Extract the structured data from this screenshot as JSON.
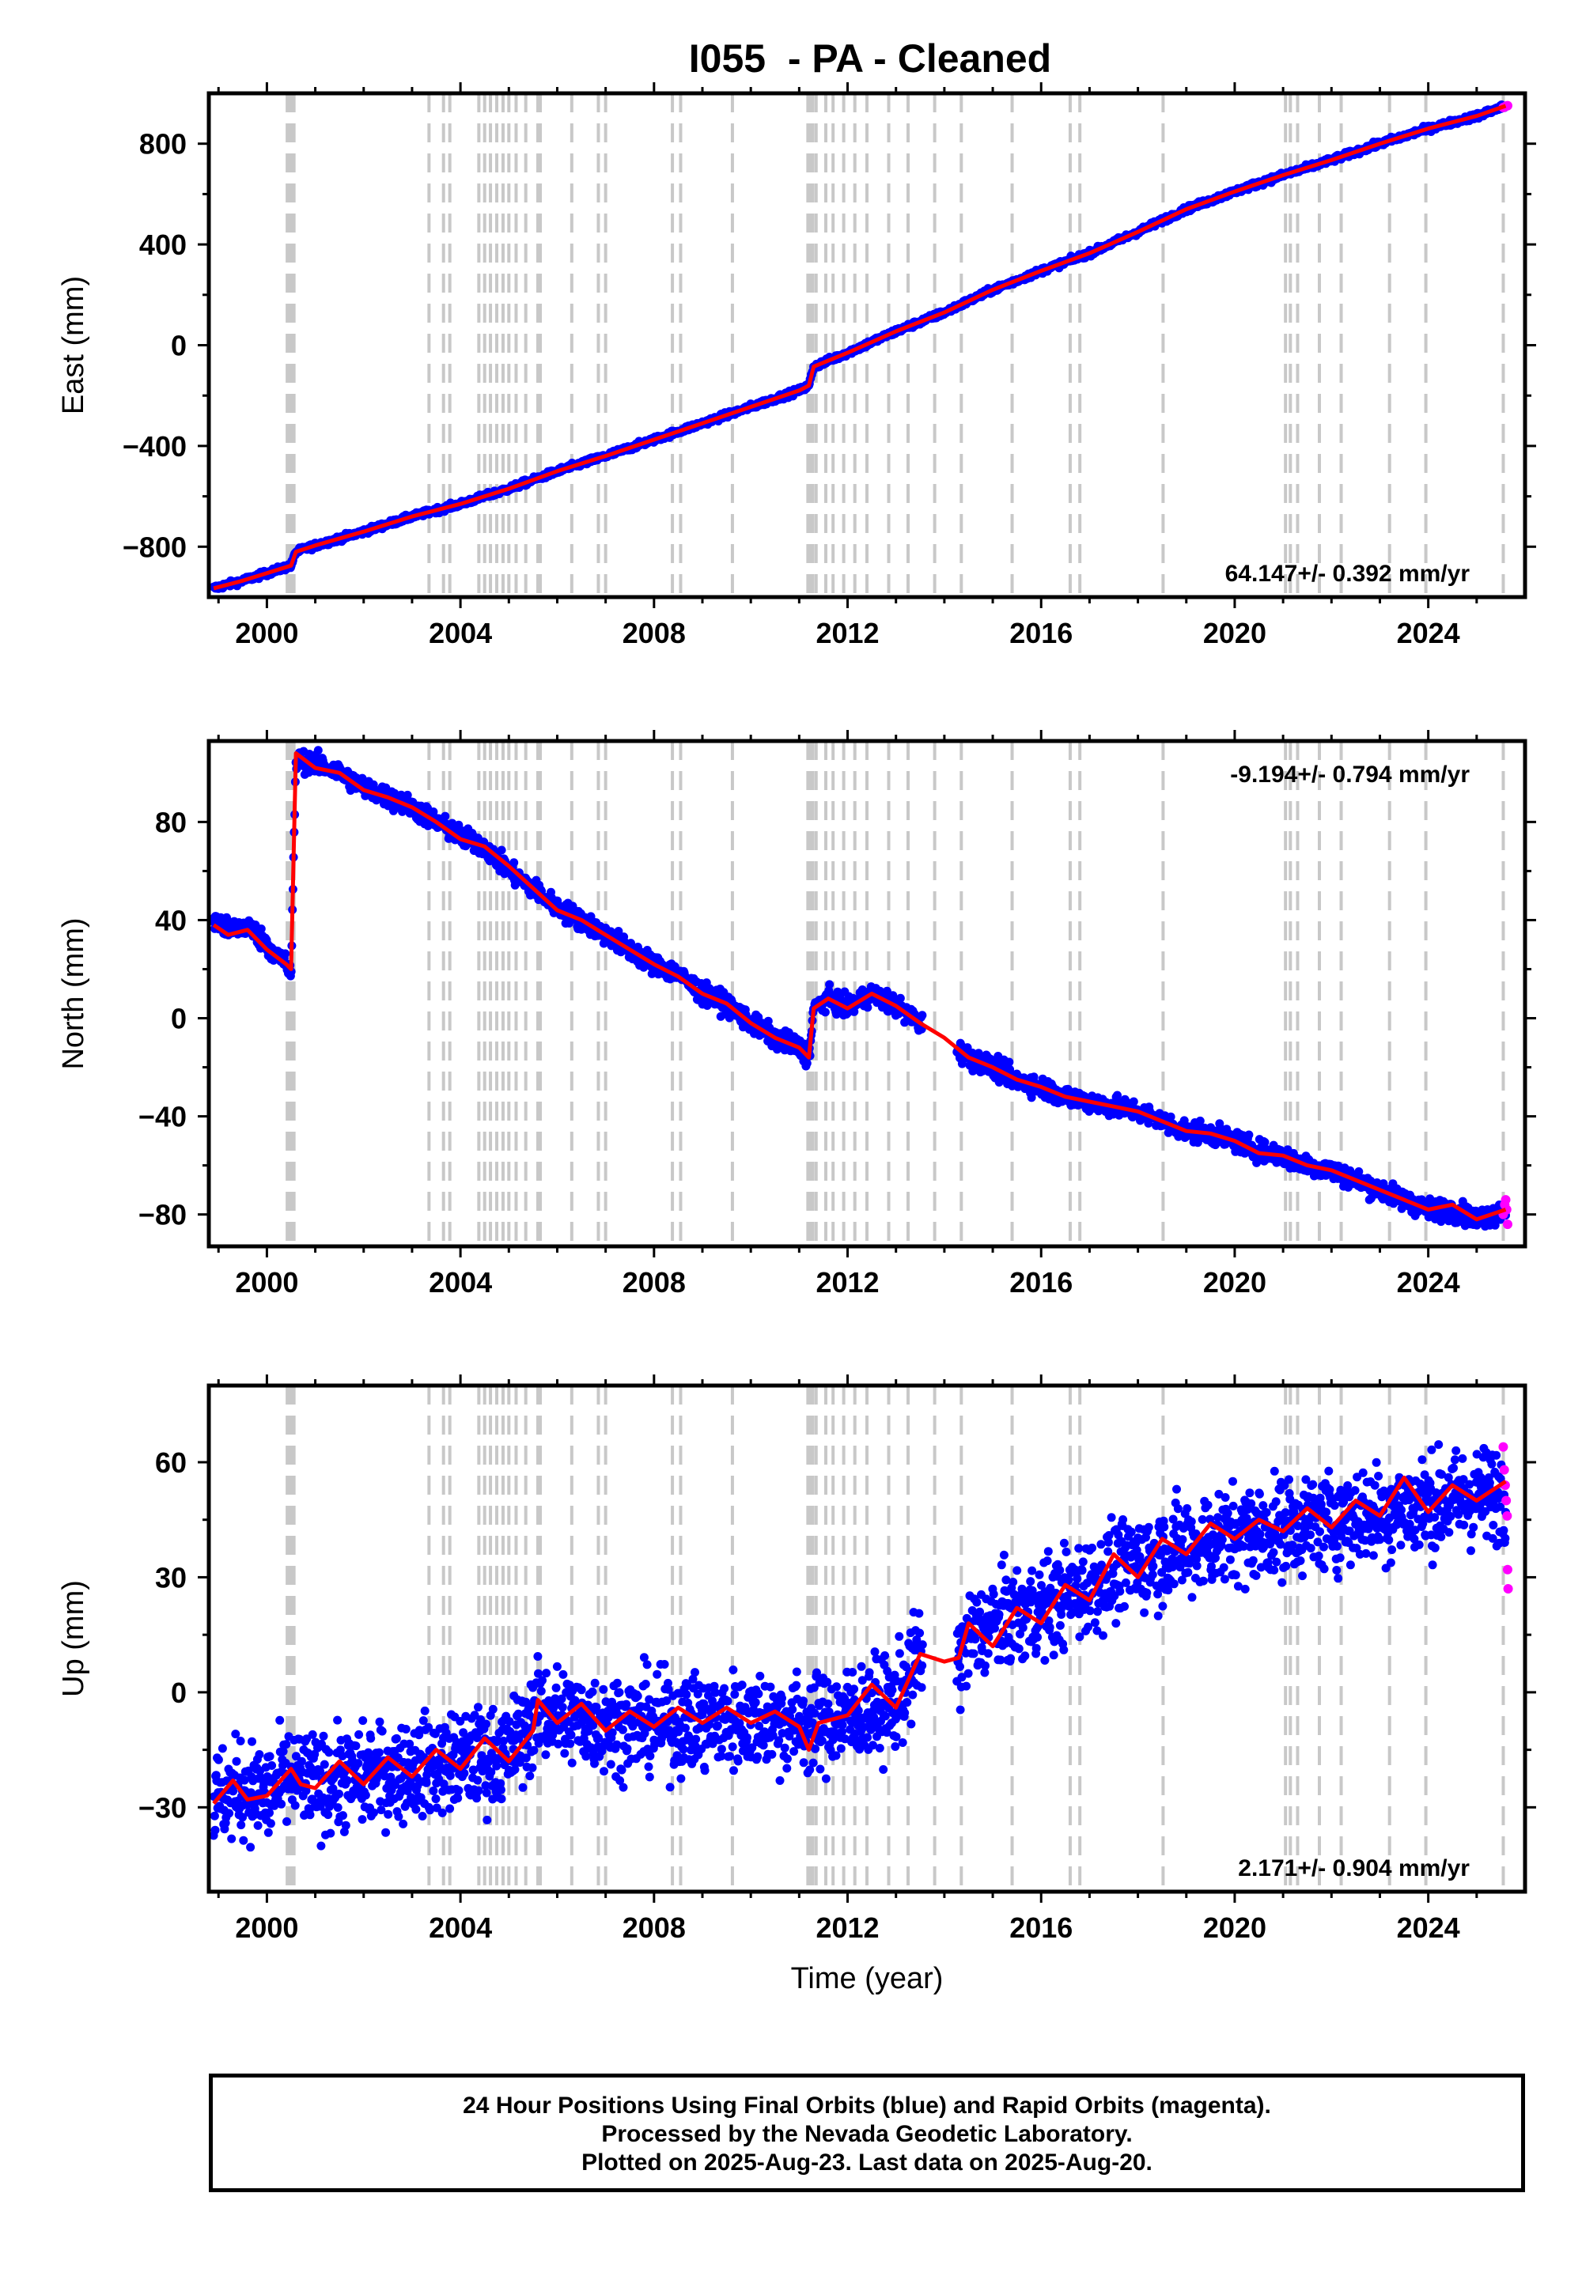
{
  "title": "I055  - PA - Cleaned",
  "colors": {
    "final_orbits": "#0000ff",
    "rapid_orbits": "#ff00ff",
    "model_fit": "#ff0000",
    "event_lines": "#c8c8c8",
    "frame": "#000000"
  },
  "footer": {
    "line1": "24 Hour Positions Using Final Orbits (blue) and Rapid Orbits (magenta).",
    "line2": "Processed by the Nevada Geodetic Laboratory.",
    "line3": "Plotted on 2025-Aug-23. Last data on 2025-Aug-20."
  },
  "chart_data": [
    {
      "type": "scatter",
      "panel": "east",
      "ylabel": "East (mm)",
      "xlabel": "",
      "xlim": [
        1998.8,
        2026.0
      ],
      "ylim": [
        -1000,
        1000
      ],
      "xticks": [
        "2000",
        "2004",
        "2008",
        "2012",
        "2016",
        "2020",
        "2024"
      ],
      "yticks": [
        "−800",
        "−400",
        "0",
        "400",
        "800"
      ],
      "ytick_values": [
        -800,
        -400,
        0,
        400,
        800
      ],
      "rate_label": "64.147+/- 0.392 mm/yr",
      "rate_label_position": "bottom-right",
      "event_lines": [
        2000.42,
        2000.45,
        2000.48,
        2000.5,
        2000.53,
        2000.56,
        2003.35,
        2003.65,
        2003.78,
        2004.38,
        2004.5,
        2004.62,
        2004.75,
        2004.88,
        2005.0,
        2005.15,
        2005.35,
        2005.6,
        2005.65,
        2006.3,
        2006.85,
        2007.0,
        2008.38,
        2008.55,
        2009.62,
        2011.18,
        2011.22,
        2011.28,
        2011.35,
        2011.55,
        2011.7,
        2011.92,
        2012.15,
        2012.4,
        2012.85,
        2013.25,
        2013.8,
        2014.35,
        2015.4,
        2016.6,
        2016.8,
        2018.52,
        2021.05,
        2021.15,
        2021.3,
        2021.75,
        2022.2,
        2023.2,
        2023.95,
        2025.55
      ],
      "series": [
        {
          "name": "Final Orbits",
          "kind": "points",
          "x": [
            1998.9,
            1999.5,
            2000.0,
            2000.5,
            2000.6,
            2001.0,
            2002.0,
            2003.0,
            2004.0,
            2005.0,
            2006.0,
            2007.0,
            2008.0,
            2009.0,
            2010.0,
            2011.0,
            2011.2,
            2011.3,
            2012.0,
            2013.0,
            2014.0,
            2015.0,
            2016.0,
            2017.0,
            2018.0,
            2019.0,
            2020.0,
            2021.0,
            2022.0,
            2023.0,
            2024.0,
            2025.0,
            2025.6
          ],
          "y": [
            -965,
            -935,
            -905,
            -875,
            -820,
            -795,
            -740,
            -680,
            -630,
            -570,
            -500,
            -440,
            -375,
            -310,
            -245,
            -180,
            -160,
            -85,
            -30,
            55,
            130,
            220,
            295,
            365,
            450,
            540,
            610,
            675,
            735,
            800,
            860,
            910,
            950
          ],
          "spread": 8
        },
        {
          "name": "Rapid Orbits",
          "kind": "points",
          "x": [
            2025.55,
            2025.58,
            2025.6,
            2025.62,
            2025.64
          ],
          "y": [
            944,
            946,
            948,
            950,
            951
          ],
          "spread": 4
        },
        {
          "name": "Model",
          "kind": "line",
          "x": [
            1998.9,
            1999.5,
            2000.0,
            2000.5,
            2000.6,
            2001.0,
            2002.0,
            2003.0,
            2004.0,
            2005.0,
            2006.0,
            2007.0,
            2008.0,
            2009.0,
            2010.0,
            2011.0,
            2011.2,
            2011.3,
            2012.0,
            2013.0,
            2014.0,
            2015.0,
            2016.0,
            2017.0,
            2018.0,
            2019.0,
            2020.0,
            2021.0,
            2022.0,
            2023.0,
            2024.0,
            2025.0,
            2025.6
          ],
          "y": [
            -965,
            -935,
            -905,
            -875,
            -820,
            -795,
            -740,
            -680,
            -630,
            -570,
            -500,
            -440,
            -375,
            -310,
            -245,
            -180,
            -160,
            -85,
            -30,
            55,
            130,
            220,
            295,
            365,
            450,
            540,
            610,
            675,
            735,
            800,
            860,
            910,
            950
          ]
        }
      ]
    },
    {
      "type": "scatter",
      "panel": "north",
      "ylabel": "North (mm)",
      "xlabel": "",
      "xlim": [
        1998.8,
        2026.0
      ],
      "ylim": [
        -93,
        113
      ],
      "xticks": [
        "2000",
        "2004",
        "2008",
        "2012",
        "2016",
        "2020",
        "2024"
      ],
      "yticks": [
        "−80",
        "−40",
        "0",
        "40",
        "80"
      ],
      "ytick_values": [
        -80,
        -40,
        0,
        40,
        80
      ],
      "rate_label": "-9.194+/- 0.794 mm/yr",
      "rate_label_position": "top-right",
      "event_lines": [
        2000.42,
        2000.45,
        2000.48,
        2000.5,
        2000.53,
        2000.56,
        2003.35,
        2003.65,
        2003.78,
        2004.38,
        2004.5,
        2004.62,
        2004.75,
        2004.88,
        2005.0,
        2005.15,
        2005.35,
        2005.6,
        2005.65,
        2006.3,
        2006.85,
        2007.0,
        2008.38,
        2008.55,
        2009.62,
        2011.18,
        2011.22,
        2011.28,
        2011.35,
        2011.55,
        2011.7,
        2011.92,
        2012.15,
        2012.4,
        2012.85,
        2013.25,
        2013.8,
        2014.35,
        2015.4,
        2016.6,
        2016.8,
        2018.52,
        2021.05,
        2021.15,
        2021.3,
        2021.75,
        2022.2,
        2023.2,
        2023.95,
        2025.55
      ],
      "series": [
        {
          "name": "Final Orbits",
          "kind": "points",
          "x": [
            1998.9,
            1999.2,
            1999.6,
            2000.0,
            2000.4,
            2000.5,
            2000.6,
            2001.0,
            2001.5,
            2002.0,
            2002.5,
            2003.0,
            2003.5,
            2004.0,
            2004.5,
            2005.0,
            2005.5,
            2006.0,
            2006.5,
            2007.0,
            2007.5,
            2008.0,
            2008.5,
            2009.0,
            2009.5,
            2010.0,
            2010.5,
            2011.0,
            2011.2,
            2011.3,
            2011.6,
            2012.0,
            2012.5,
            2013.0,
            2013.5,
            2014.0,
            2014.5,
            2015.0,
            2015.5,
            2016.0,
            2016.5,
            2017.0,
            2017.5,
            2018.0,
            2018.5,
            2019.0,
            2019.5,
            2020.0,
            2020.5,
            2021.0,
            2021.5,
            2022.0,
            2022.5,
            2023.0,
            2023.5,
            2024.0,
            2024.5,
            2025.0,
            2025.6
          ],
          "y": [
            40,
            36,
            38,
            30,
            22,
            18,
            105,
            104,
            100,
            94,
            90,
            86,
            80,
            74,
            70,
            60,
            53,
            45,
            40,
            34,
            28,
            22,
            18,
            10,
            6,
            -2,
            -8,
            -12,
            -16,
            4,
            8,
            4,
            10,
            5,
            -2,
            -8,
            -16,
            -20,
            -25,
            -28,
            -32,
            -34,
            -36,
            -38,
            -42,
            -46,
            -47,
            -50,
            -54,
            -56,
            -60,
            -62,
            -66,
            -70,
            -74,
            -78,
            -78,
            -82,
            -78
          ],
          "spread": 3
        },
        {
          "name": "Rapid Orbits",
          "kind": "points",
          "x": [
            2025.55,
            2025.58,
            2025.6,
            2025.62,
            2025.64
          ],
          "y": [
            -80,
            -76,
            -74,
            -78,
            -84
          ],
          "spread": 2
        },
        {
          "name": "Model",
          "kind": "line",
          "x": [
            1998.9,
            1999.2,
            1999.6,
            2000.0,
            2000.4,
            2000.5,
            2000.6,
            2001.0,
            2001.5,
            2002.0,
            2002.5,
            2003.0,
            2003.5,
            2004.0,
            2004.5,
            2005.0,
            2005.5,
            2006.0,
            2006.5,
            2007.0,
            2007.5,
            2008.0,
            2008.5,
            2009.0,
            2009.5,
            2010.0,
            2010.5,
            2011.0,
            2011.2,
            2011.3,
            2011.6,
            2012.0,
            2012.5,
            2013.0,
            2013.5,
            2014.0,
            2014.5,
            2015.0,
            2015.5,
            2016.0,
            2016.5,
            2017.0,
            2017.5,
            2018.0,
            2018.5,
            2019.0,
            2019.5,
            2020.0,
            2020.5,
            2021.0,
            2021.5,
            2022.0,
            2022.5,
            2023.0,
            2023.5,
            2024.0,
            2024.5,
            2025.0,
            2025.6
          ],
          "y": [
            38,
            34,
            36,
            28,
            22,
            20,
            108,
            102,
            100,
            93,
            90,
            86,
            80,
            73,
            70,
            62,
            53,
            44,
            40,
            34,
            28,
            22,
            17,
            10,
            6,
            -2,
            -8,
            -12,
            -16,
            4,
            8,
            4,
            10,
            5,
            -2,
            -8,
            -16,
            -20,
            -25,
            -28,
            -32,
            -34,
            -36,
            -38,
            -42,
            -46,
            -47,
            -50,
            -55,
            -56,
            -60,
            -62,
            -66,
            -70,
            -74,
            -78,
            -76,
            -82,
            -78
          ]
        }
      ]
    },
    {
      "type": "scatter",
      "panel": "up",
      "ylabel": "Up (mm)",
      "xlabel": "Time (year)",
      "xlim": [
        1998.8,
        2026.0
      ],
      "ylim": [
        -52,
        80
      ],
      "xticks": [
        "2000",
        "2004",
        "2008",
        "2012",
        "2016",
        "2020",
        "2024"
      ],
      "yticks": [
        "−30",
        "0",
        "30",
        "60"
      ],
      "ytick_values": [
        -30,
        0,
        30,
        60
      ],
      "rate_label": "2.171+/- 0.904 mm/yr",
      "rate_label_position": "bottom-right",
      "event_lines": [
        2000.42,
        2000.45,
        2000.48,
        2000.5,
        2000.53,
        2000.56,
        2003.35,
        2003.65,
        2003.78,
        2004.38,
        2004.5,
        2004.62,
        2004.75,
        2004.88,
        2005.0,
        2005.15,
        2005.35,
        2005.6,
        2005.65,
        2006.3,
        2006.85,
        2007.0,
        2008.38,
        2008.55,
        2009.62,
        2011.18,
        2011.22,
        2011.28,
        2011.35,
        2011.55,
        2011.7,
        2011.92,
        2012.15,
        2012.4,
        2012.85,
        2013.25,
        2013.8,
        2014.35,
        2015.4,
        2016.6,
        2016.8,
        2018.52,
        2021.05,
        2021.15,
        2021.3,
        2021.75,
        2022.2,
        2023.2,
        2023.95,
        2025.55
      ],
      "series": [
        {
          "name": "Final Orbits",
          "kind": "points",
          "x": [
            1998.9,
            1999.5,
            2000.0,
            2000.5,
            2001.0,
            2002.0,
            2003.0,
            2004.0,
            2005.0,
            2005.6,
            2006.0,
            2007.0,
            2008.0,
            2009.0,
            2010.0,
            2011.0,
            2011.3,
            2012.0,
            2013.0,
            2013.5,
            2014.3,
            2014.5,
            2015.0,
            2016.0,
            2017.0,
            2018.0,
            2019.0,
            2020.0,
            2021.0,
            2022.0,
            2023.0,
            2024.0,
            2025.0,
            2025.6
          ],
          "y": [
            -28,
            -25,
            -27,
            -22,
            -24,
            -22,
            -20,
            -18,
            -16,
            -5,
            -6,
            -8,
            -8,
            -8,
            -7,
            -8,
            -9,
            -6,
            -3,
            10,
            8,
            14,
            18,
            22,
            28,
            34,
            38,
            41,
            43,
            45,
            47,
            49,
            51,
            52
          ],
          "spread": 9
        },
        {
          "name": "Rapid Orbits",
          "kind": "points",
          "x": [
            2025.55,
            2025.57,
            2025.59,
            2025.61,
            2025.63,
            2025.64,
            2025.65
          ],
          "y": [
            64,
            58,
            54,
            50,
            46,
            32,
            27
          ],
          "spread": 1
        },
        {
          "name": "Model",
          "kind": "line",
          "x": [
            1998.9,
            1999.3,
            1999.6,
            2000.0,
            2000.5,
            2000.7,
            2001.0,
            2001.5,
            2002.0,
            2002.5,
            2003.0,
            2003.5,
            2004.0,
            2004.5,
            2005.0,
            2005.5,
            2005.6,
            2006.0,
            2006.5,
            2007.0,
            2007.5,
            2008.0,
            2008.5,
            2009.0,
            2009.5,
            2010.0,
            2010.5,
            2011.0,
            2011.2,
            2011.4,
            2012.0,
            2012.5,
            2013.0,
            2013.5,
            2014.0,
            2014.3,
            2014.5,
            2015.0,
            2015.5,
            2016.0,
            2016.5,
            2017.0,
            2017.5,
            2018.0,
            2018.5,
            2019.0,
            2019.5,
            2020.0,
            2020.5,
            2021.0,
            2021.5,
            2022.0,
            2022.5,
            2023.0,
            2023.5,
            2024.0,
            2024.5,
            2025.0,
            2025.6
          ],
          "y": [
            -29,
            -23,
            -28,
            -27,
            -20,
            -24,
            -25,
            -18,
            -24,
            -17,
            -22,
            -15,
            -20,
            -12,
            -18,
            -10,
            -2,
            -8,
            -3,
            -10,
            -5,
            -9,
            -4,
            -8,
            -4,
            -8,
            -5,
            -9,
            -15,
            -8,
            -6,
            2,
            -4,
            10,
            8,
            9,
            18,
            12,
            22,
            18,
            28,
            24,
            36,
            30,
            40,
            36,
            44,
            40,
            45,
            42,
            48,
            43,
            50,
            46,
            56,
            47,
            54,
            50,
            55
          ]
        }
      ]
    }
  ]
}
